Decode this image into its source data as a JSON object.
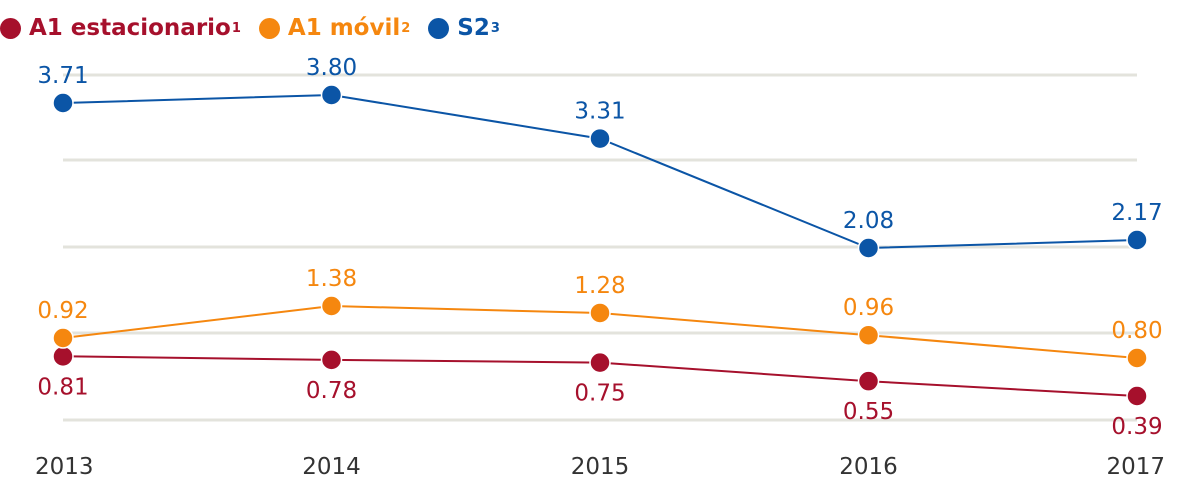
{
  "chart_data": {
    "type": "line",
    "title": "",
    "xlabel": "",
    "ylabel": "",
    "grid": true,
    "legend_position": "top-left",
    "categories": [
      "2013",
      "2014",
      "2015",
      "2016",
      "2017"
    ],
    "series": [
      {
        "id": "a1-estacionario",
        "name": "A1 estacionario",
        "footnote": "1",
        "color": "#a6102c",
        "values": [
          0.81,
          0.78,
          0.75,
          0.55,
          0.39
        ],
        "labels": [
          "0.81",
          "0.78",
          "0.75",
          "0.55",
          "0.39"
        ]
      },
      {
        "id": "a1-movil",
        "name": "A1 móvil",
        "footnote": "2",
        "color": "#f5870f",
        "values": [
          0.92,
          1.38,
          1.28,
          0.96,
          0.8
        ],
        "labels": [
          "0.92",
          "1.38",
          "1.28",
          "0.96",
          "0.80"
        ]
      },
      {
        "id": "s2",
        "name": "S2",
        "footnote": "3",
        "color": "#0b55a6",
        "values": [
          3.71,
          3.8,
          3.31,
          2.08,
          2.17
        ],
        "labels": [
          "3.71",
          "3.80",
          "3.31",
          "2.08",
          "2.17"
        ]
      }
    ]
  }
}
